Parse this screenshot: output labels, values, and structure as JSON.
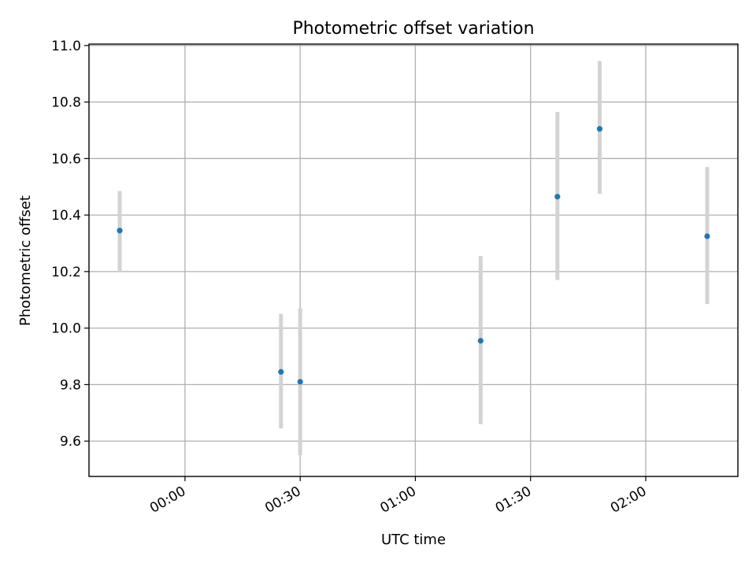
{
  "chart_data": {
    "type": "scatter",
    "title": "Photometric offset variation",
    "xlabel": "UTC time",
    "ylabel": "Photometric offset",
    "x_unit": "UTC time (HH:MM)",
    "xlim": [
      "23:35",
      "02:24"
    ],
    "ylim": [
      9.475,
      11.005
    ],
    "grid": true,
    "x_ticks": [
      "00:00",
      "00:30",
      "01:00",
      "01:30",
      "02:00"
    ],
    "y_ticks": [
      9.6,
      9.8,
      10.0,
      10.2,
      10.4,
      10.6,
      10.8,
      11.0
    ],
    "y_tick_labels": [
      "9.6",
      "9.8",
      "10.0",
      "10.2",
      "10.4",
      "10.6",
      "10.8",
      "11.0"
    ],
    "marker_color": "#1f77b4",
    "errorbar_color": "#d3d3d3",
    "points": [
      {
        "x": "23:43",
        "y": 10.345,
        "ymin": 10.2,
        "ymax": 10.485
      },
      {
        "x": "00:25",
        "y": 9.845,
        "ymin": 9.645,
        "ymax": 10.05
      },
      {
        "x": "00:30",
        "y": 9.81,
        "ymin": 9.55,
        "ymax": 10.07
      },
      {
        "x": "01:17",
        "y": 9.955,
        "ymin": 9.66,
        "ymax": 10.255
      },
      {
        "x": "01:37",
        "y": 10.465,
        "ymin": 10.17,
        "ymax": 10.765
      },
      {
        "x": "01:48",
        "y": 10.705,
        "ymin": 10.475,
        "ymax": 10.945
      },
      {
        "x": "02:16",
        "y": 10.325,
        "ymin": 10.085,
        "ymax": 10.57
      }
    ]
  }
}
